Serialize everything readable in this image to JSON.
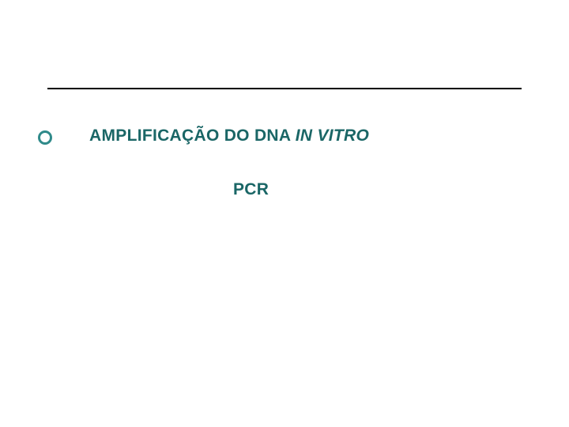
{
  "divider": {
    "color": "#000000"
  },
  "bullet": {
    "ring_color": "#2f8a8a"
  },
  "title": {
    "main_text": "AMPLIFICAÇÃO DO DNA ",
    "italic_text": "IN VITRO",
    "font_size": 21,
    "font_weight": "bold",
    "color": "#1a6666"
  },
  "subtitle": {
    "text": "PCR",
    "font_size": 21,
    "font_weight": "bold",
    "color": "#1a6666"
  },
  "background_color": "#ffffff"
}
